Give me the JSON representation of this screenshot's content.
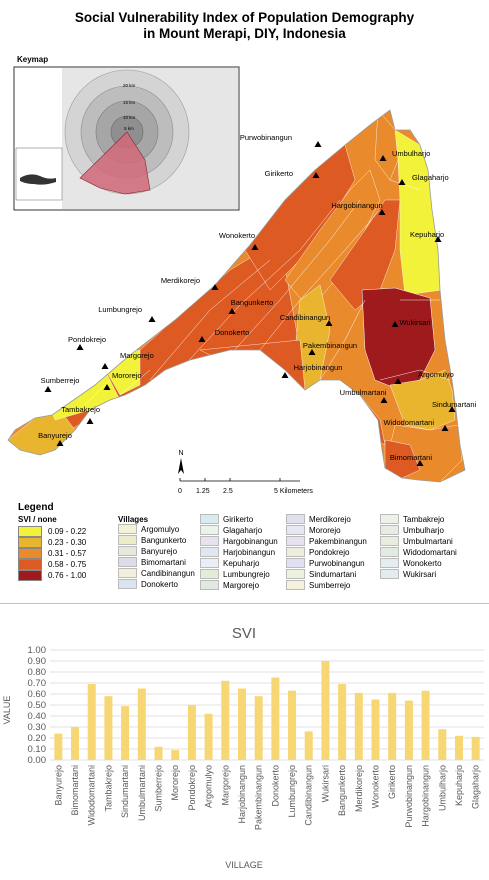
{
  "title": {
    "line1": "Social Vulnerability Index of Population Demography",
    "line2": "in Mount Merapi, DIY, Indonesia"
  },
  "keymap": {
    "label": "Keymap",
    "ring_labels": [
      "20 km",
      "15 km",
      "10 km",
      "5 km"
    ],
    "colors": {
      "inset_bg": "#d9d9d9",
      "sector": "#d26a7a"
    }
  },
  "map": {
    "village_labels": [
      "Purwobinangun",
      "Umbulharjo",
      "Girikerto",
      "Glagaharjo",
      "Hargobinangun",
      "Kepuharjo",
      "Wonokerto",
      "Merdikorejo",
      "Lumbungrejo",
      "Bangunkerto",
      "Candibinangun",
      "Wukirsari",
      "Pondokrejo",
      "Donokerto",
      "Pakembinangun",
      "Margorejo",
      "Mororejo",
      "Harjobinangun",
      "Argomulyo",
      "Sumberrejo",
      "Umbulmartani",
      "Sindumartani",
      "Tambakrejo",
      "Widodomartani",
      "Banyurejo",
      "Bimomartani"
    ],
    "north_label": "N",
    "scale": {
      "ticks": [
        "0",
        "1.25",
        "2.5",
        "5 Kilometers"
      ]
    }
  },
  "legend": {
    "title": "Legend",
    "svi_header": "SVI / none",
    "villages_header": "Villages",
    "svi_classes": [
      {
        "label": "0.09 - 0.22",
        "color": "#f2f23a"
      },
      {
        "label": "0.23 - 0.30",
        "color": "#eab52e"
      },
      {
        "label": "0.31 - 0.57",
        "color": "#e98a2c"
      },
      {
        "label": "0.58 - 0.75",
        "color": "#dd5a22"
      },
      {
        "label": "0.76 - 1.00",
        "color": "#9e1a1c"
      }
    ],
    "villages": [
      "Argomulyo",
      "Bangunkerto",
      "Banyurejo",
      "Bimomartani",
      "Candibinangun",
      "Donokerto",
      "Girikerto",
      "Glagaharjo",
      "Hargobinangun",
      "Harjobinangun",
      "Kepuharjo",
      "Lumbungrejo",
      "Margorejo",
      "Merdikorejo",
      "Mororejo",
      "Pakembinangun",
      "Pondokrejo",
      "Purwobinangun",
      "Sindumartani",
      "Sumberrejo",
      "Tambakrejo",
      "Umbulharjo",
      "Umbulmartani",
      "Widodomartani",
      "Wonokerto",
      "Wukirsari"
    ],
    "village_colors": [
      "#f3f2d6",
      "#ecebc9",
      "#e6e9d8",
      "#dddbe9",
      "#f2f0dc",
      "#dde4f0",
      "#d9ebf0",
      "#eaf3e7",
      "#e7e2f1",
      "#e1e6f3",
      "#eaeef5",
      "#e4ebd9",
      "#e2e8e3",
      "#dfe0ee",
      "#e5e8f2",
      "#e6e2ee",
      "#eeeedc",
      "#e1e0f0",
      "#edf1e0",
      "#f4f1dd",
      "#eef1e8",
      "#e6ece2",
      "#e8eddf",
      "#e0ebe2",
      "#e4eef2",
      "#e2ebf0"
    ]
  },
  "chart_data": {
    "type": "bar",
    "title": "SVI",
    "xlabel": "VILLAGE",
    "ylabel": "VALUE",
    "ylim": [
      0,
      1.0
    ],
    "yticks": [
      "0.00",
      "0.10",
      "0.20",
      "0.30",
      "0.40",
      "0.50",
      "0.60",
      "0.70",
      "0.80",
      "0.90",
      "1.00"
    ],
    "grid": true,
    "bar_color": "#f7d774",
    "categories": [
      "Banyurejo",
      "Bimomartani",
      "Widodomartani",
      "Tambakrejo",
      "Sindumartani",
      "Umbulmartani",
      "Sumberrejo",
      "Mororejo",
      "Pondokrejo",
      "Argomulyo",
      "Margorejo",
      "Harjobinangun",
      "Pakembinangun",
      "Donokerto",
      "Lumbungrejo",
      "Candibinangun",
      "Wukirsari",
      "Bangunkerto",
      "Merdikorejo",
      "Wonokerto",
      "Girikerto",
      "Purwobinangun",
      "Hargobinangun",
      "Umbulharjo",
      "Kepuharjo",
      "Glagaharjo"
    ],
    "values": [
      0.24,
      0.3,
      0.69,
      0.58,
      0.49,
      0.65,
      0.12,
      0.09,
      0.5,
      0.42,
      0.72,
      0.65,
      0.58,
      0.75,
      0.63,
      0.26,
      0.9,
      0.69,
      0.61,
      0.55,
      0.61,
      0.54,
      0.63,
      0.28,
      0.22,
      0.21
    ]
  }
}
